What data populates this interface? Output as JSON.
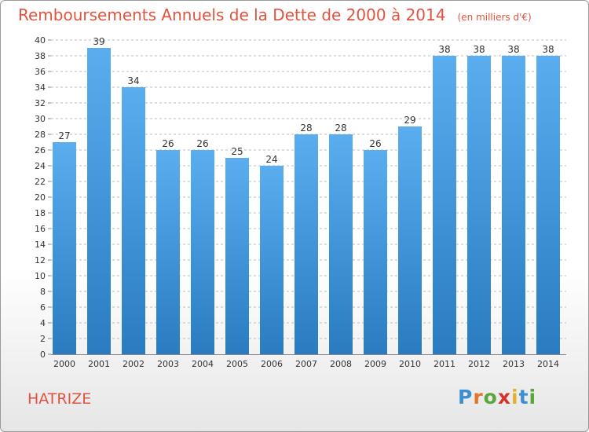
{
  "header": {
    "title": "Remboursements Annuels de la Dette de 2000 à 2014",
    "unit": "(en milliers d'€)"
  },
  "footer": {
    "commune": "HATRIZE",
    "logo": {
      "letters": [
        "P",
        "r",
        "o",
        "x",
        "i",
        "t",
        "i"
      ],
      "colors": [
        "#3d8fd0",
        "#e8742a",
        "#5aa63a",
        "#d6342a",
        "#e8b02a",
        "#3d8fd0",
        "#5aa63a"
      ]
    }
  },
  "colors": {
    "title": "#e2533f",
    "bar_top": "#5aaef0",
    "bar_bottom": "#2a7bc0",
    "grid": "#bbbbbb",
    "axis": "#888888"
  },
  "chart_data": {
    "type": "bar",
    "categories": [
      "2000",
      "2001",
      "2002",
      "2003",
      "2004",
      "2005",
      "2006",
      "2007",
      "2008",
      "2009",
      "2010",
      "2011",
      "2012",
      "2013",
      "2014"
    ],
    "values": [
      27,
      39,
      34,
      26,
      26,
      25,
      24,
      28,
      28,
      26,
      29,
      38,
      38,
      38,
      38
    ],
    "ylim": [
      0,
      40
    ],
    "yticks": [
      0,
      2,
      4,
      6,
      8,
      10,
      12,
      14,
      16,
      18,
      20,
      22,
      24,
      26,
      28,
      30,
      32,
      34,
      36,
      38,
      40
    ],
    "grid": true,
    "data_labels": true
  }
}
